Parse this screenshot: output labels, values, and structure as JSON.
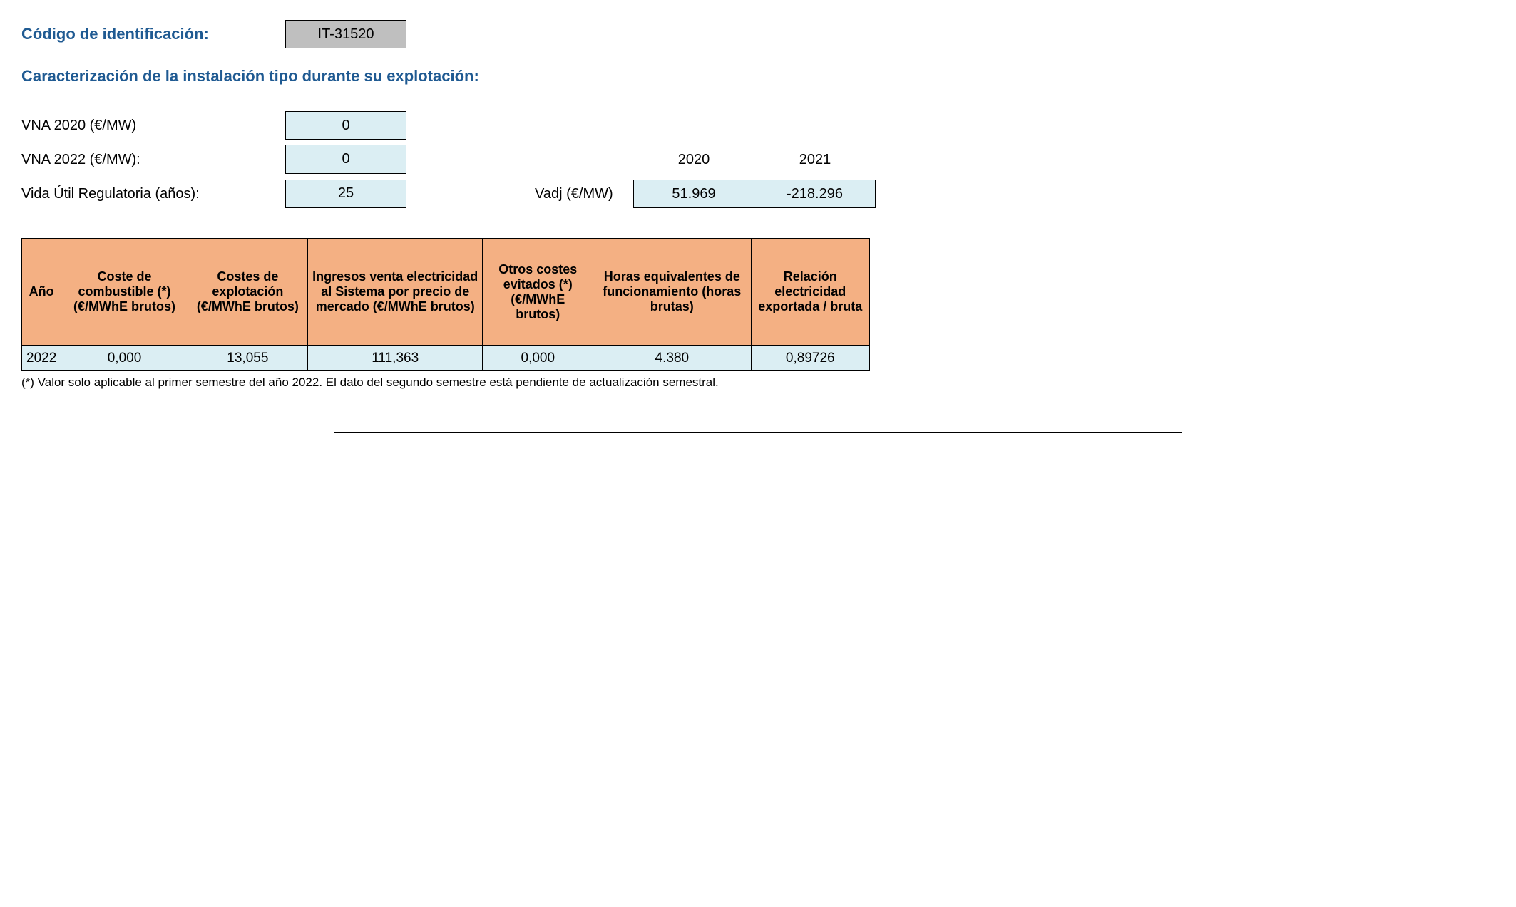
{
  "header": {
    "code_label": "Código de identificación:",
    "code_value": "IT-31520",
    "section_title": "Caracterización de la instalación tipo durante su explotación:"
  },
  "params": {
    "vna2020_label": "VNA 2020 (€/MW)",
    "vna2020_value": "0",
    "vna2022_label": "VNA 2022 (€/MW):",
    "vna2022_value": "0",
    "vida_label": "Vida Útil Regulatoria (años):",
    "vida_value": "25"
  },
  "vadj": {
    "label": "Vadj (€/MW)",
    "year1": "2020",
    "year2": "2021",
    "val1": "51.969",
    "val2": "-218.296"
  },
  "table": {
    "columns": [
      "Año",
      "Coste de combustible (*) (€/MWhE brutos)",
      "Costes de explotación (€/MWhE brutos)",
      "Ingresos venta electricidad al Sistema por precio de mercado (€/MWhE brutos)",
      "Otros costes evitados (*) (€/MWhE brutos)",
      "Horas equivalentes de funcionamiento (horas brutas)",
      "Relación electricidad exportada / bruta"
    ],
    "col_widths": [
      "170px",
      "170px",
      "170px",
      "170px",
      "170px",
      "170px",
      "170px"
    ],
    "row": {
      "c0": "2022",
      "c1": "0,000",
      "c2": "13,055",
      "c3": "111,363",
      "c4": "0,000",
      "c5": "4.380",
      "c6": "0,89726"
    }
  },
  "footnote": "(*) Valor solo aplicable al primer semestre del año 2022. El dato del segundo semestre está pendiente de actualización semestral.",
  "colors": {
    "heading": "#1f5a92",
    "header_bg": "#f4b083",
    "cell_bg": "#dbeef3",
    "id_bg": "#bfbfbf",
    "border": "#000000",
    "background": "#ffffff"
  }
}
